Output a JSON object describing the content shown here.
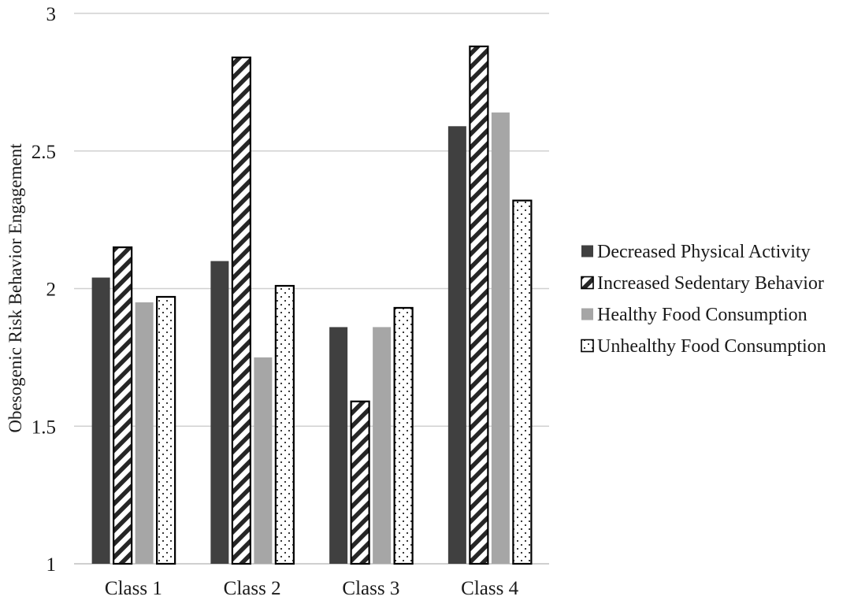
{
  "chart_data": {
    "type": "bar",
    "title": "",
    "xlabel": "",
    "ylabel": "Obesogenic Risk Behavior Engagement",
    "ylim": [
      1,
      3
    ],
    "yticks": [
      "1",
      "1.5",
      "2",
      "2.5",
      "3"
    ],
    "ytick_values": [
      1,
      1.5,
      2,
      2.5,
      3
    ],
    "grid": true,
    "legend_position": "right",
    "categories": [
      "Class 1",
      "Class 2",
      "Class 3",
      "Class 4"
    ],
    "series": [
      {
        "name": "Decreased Physical Activity",
        "pattern": "solid-dark",
        "color": "#404040",
        "values": [
          2.04,
          2.1,
          1.86,
          2.59
        ]
      },
      {
        "name": "Increased Sedentary Behavior",
        "pattern": "diagonal-stripes",
        "color": "#262626",
        "values": [
          2.15,
          2.84,
          1.59,
          2.88
        ]
      },
      {
        "name": "Healthy Food Consumption",
        "pattern": "solid-light",
        "color": "#a6a6a6",
        "values": [
          1.95,
          1.75,
          1.86,
          2.64
        ]
      },
      {
        "name": "Unhealthy Food Consumption",
        "pattern": "dots",
        "color": "#262626",
        "values": [
          1.97,
          2.01,
          1.93,
          2.32
        ]
      }
    ]
  }
}
